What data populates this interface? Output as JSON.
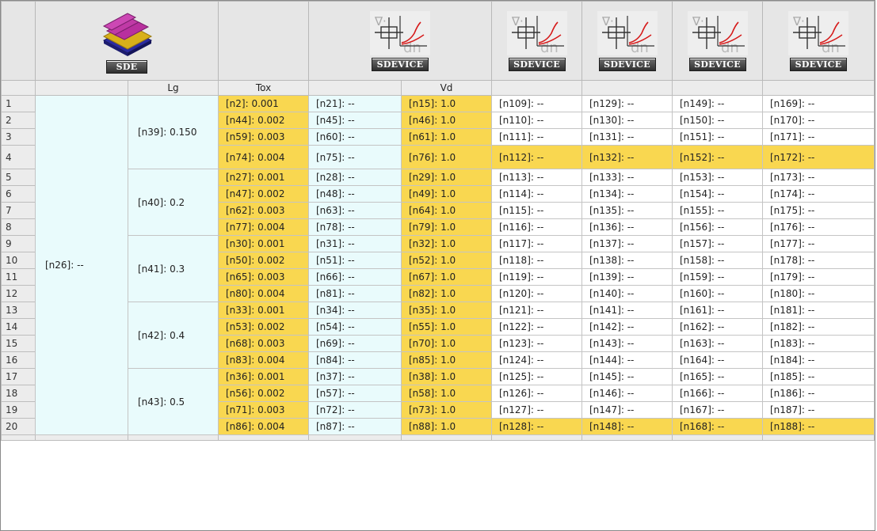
{
  "tools": [
    {
      "label": "SDE",
      "icon": "sde-structure-icon"
    },
    {
      "label": "SDEVICE",
      "icon": "sdevice-tool-icon"
    },
    {
      "label": "SDEVICE",
      "icon": "sdevice-tool-icon"
    },
    {
      "label": "SDEVICE",
      "icon": "sdevice-tool-icon"
    },
    {
      "label": "SDEVICE",
      "icon": "sdevice-tool-icon"
    },
    {
      "label": "SDEVICE",
      "icon": "sdevice-tool-icon"
    }
  ],
  "params": [
    "Lg",
    "Tox",
    "",
    "Vd",
    "",
    "",
    "",
    ""
  ],
  "root_node": "[n26]: --",
  "groups": [
    "[n39]: 0.150",
    "[n40]: 0.2",
    "[n41]: 0.3",
    "[n42]: 0.4",
    "[n43]: 0.5"
  ],
  "rows": [
    {
      "num": "1",
      "cells": [
        "[n2]: 0.001",
        "[n21]: --",
        "[n15]: 1.0",
        "[n109]: --",
        "[n129]: --",
        "[n149]: --",
        "[n169]: --"
      ]
    },
    {
      "num": "2",
      "cells": [
        "[n44]: 0.002",
        "[n45]: --",
        "[n46]: 1.0",
        "[n110]: --",
        "[n130]: --",
        "[n150]: --",
        "[n170]: --"
      ]
    },
    {
      "num": "3",
      "cells": [
        "[n59]: 0.003",
        "[n60]: --",
        "[n61]: 1.0",
        "[n111]: --",
        "[n131]: --",
        "[n151]: --",
        "[n171]: --"
      ]
    },
    {
      "num": "4",
      "cells": [
        "[n74]: 0.004",
        "[n75]: --",
        "[n76]: 1.0",
        "[n112]: --",
        "[n132]: --",
        "[n152]: --",
        "[n172]: --"
      ]
    },
    {
      "num": "5",
      "cells": [
        "[n27]: 0.001",
        "[n28]: --",
        "[n29]: 1.0",
        "[n113]: --",
        "[n133]: --",
        "[n153]: --",
        "[n173]: --"
      ]
    },
    {
      "num": "6",
      "cells": [
        "[n47]: 0.002",
        "[n48]: --",
        "[n49]: 1.0",
        "[n114]: --",
        "[n134]: --",
        "[n154]: --",
        "[n174]: --"
      ]
    },
    {
      "num": "7",
      "cells": [
        "[n62]: 0.003",
        "[n63]: --",
        "[n64]: 1.0",
        "[n115]: --",
        "[n135]: --",
        "[n155]: --",
        "[n175]: --"
      ]
    },
    {
      "num": "8",
      "cells": [
        "[n77]: 0.004",
        "[n78]: --",
        "[n79]: 1.0",
        "[n116]: --",
        "[n136]: --",
        "[n156]: --",
        "[n176]: --"
      ]
    },
    {
      "num": "9",
      "cells": [
        "[n30]: 0.001",
        "[n31]: --",
        "[n32]: 1.0",
        "[n117]: --",
        "[n137]: --",
        "[n157]: --",
        "[n177]: --"
      ]
    },
    {
      "num": "10",
      "cells": [
        "[n50]: 0.002",
        "[n51]: --",
        "[n52]: 1.0",
        "[n118]: --",
        "[n138]: --",
        "[n158]: --",
        "[n178]: --"
      ]
    },
    {
      "num": "11",
      "cells": [
        "[n65]: 0.003",
        "[n66]: --",
        "[n67]: 1.0",
        "[n119]: --",
        "[n139]: --",
        "[n159]: --",
        "[n179]: --"
      ]
    },
    {
      "num": "12",
      "cells": [
        "[n80]: 0.004",
        "[n81]: --",
        "[n82]: 1.0",
        "[n120]: --",
        "[n140]: --",
        "[n160]: --",
        "[n180]: --"
      ]
    },
    {
      "num": "13",
      "cells": [
        "[n33]: 0.001",
        "[n34]: --",
        "[n35]: 1.0",
        "[n121]: --",
        "[n141]: --",
        "[n161]: --",
        "[n181]: --"
      ]
    },
    {
      "num": "14",
      "cells": [
        "[n53]: 0.002",
        "[n54]: --",
        "[n55]: 1.0",
        "[n122]: --",
        "[n142]: --",
        "[n162]: --",
        "[n182]: --"
      ]
    },
    {
      "num": "15",
      "cells": [
        "[n68]: 0.003",
        "[n69]: --",
        "[n70]: 1.0",
        "[n123]: --",
        "[n143]: --",
        "[n163]: --",
        "[n183]: --"
      ]
    },
    {
      "num": "16",
      "cells": [
        "[n83]: 0.004",
        "[n84]: --",
        "[n85]: 1.0",
        "[n124]: --",
        "[n144]: --",
        "[n164]: --",
        "[n184]: --"
      ]
    },
    {
      "num": "17",
      "cells": [
        "[n36]: 0.001",
        "[n37]: --",
        "[n38]: 1.0",
        "[n125]: --",
        "[n145]: --",
        "[n165]: --",
        "[n185]: --"
      ]
    },
    {
      "num": "18",
      "cells": [
        "[n56]: 0.002",
        "[n57]: --",
        "[n58]: 1.0",
        "[n126]: --",
        "[n146]: --",
        "[n166]: --",
        "[n186]: --"
      ]
    },
    {
      "num": "19",
      "cells": [
        "[n71]: 0.003",
        "[n72]: --",
        "[n73]: 1.0",
        "[n127]: --",
        "[n147]: --",
        "[n167]: --",
        "[n187]: --"
      ]
    },
    {
      "num": "20",
      "cells": [
        "[n86]: 0.004",
        "[n87]: --",
        "[n88]: 1.0",
        "[n128]: --",
        "[n148]: --",
        "[n168]: --",
        "[n188]: --"
      ]
    }
  ],
  "highlights": {
    "yellow_columns": [
      0,
      2
    ],
    "yellow_rows": [
      4,
      20
    ],
    "yellow_color": "#f9d750",
    "node_bg_color": "#e9fbfc"
  }
}
